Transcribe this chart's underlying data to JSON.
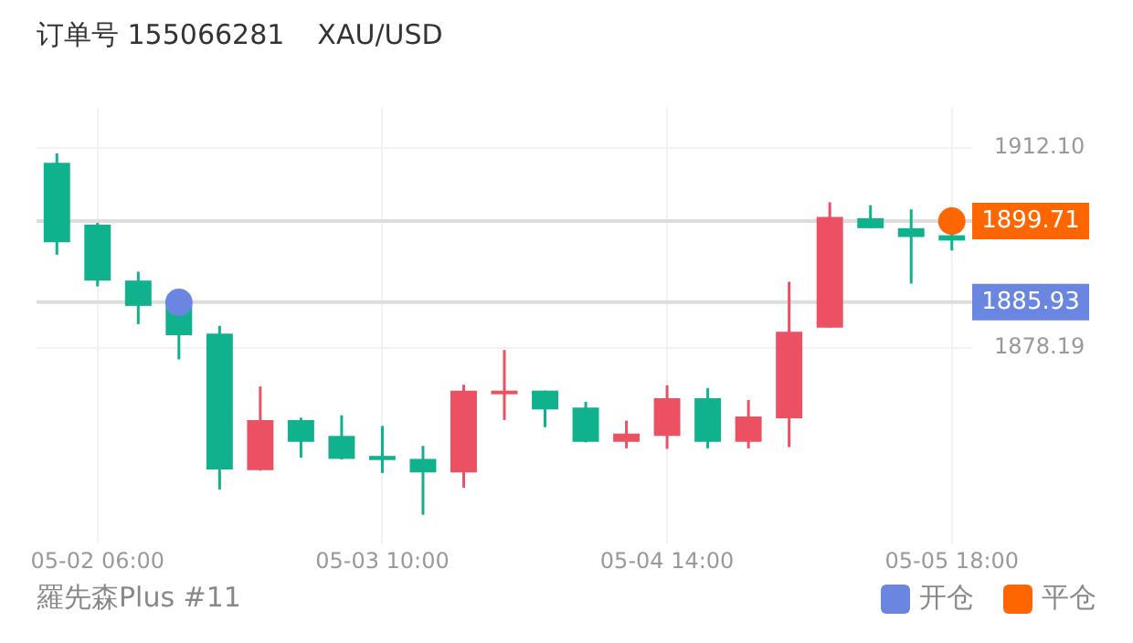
{
  "chart_data": {
    "type": "candlestick",
    "title": "订单号 155066281",
    "subtitle": "XAU/USD",
    "categories": [
      null,
      "05-02 06:00",
      null,
      null,
      null,
      null,
      null,
      null,
      "05-03 10:00",
      null,
      null,
      null,
      null,
      null,
      null,
      "05-04 14:00",
      null,
      null,
      null,
      null,
      null,
      null,
      "05-05 18:00"
    ],
    "ohlc": [
      [
        1909.6,
        1911.2,
        1894.0,
        1896.1
      ],
      [
        1899.1,
        1899.4,
        1888.6,
        1889.6
      ],
      [
        1889.6,
        1891.1,
        1882.2,
        1885.3
      ],
      [
        1885.3,
        1885.5,
        1876.2,
        1880.3
      ],
      [
        1880.6,
        1881.9,
        1854.1,
        1857.5
      ],
      [
        1857.4,
        1871.6,
        1857.3,
        1865.9
      ],
      [
        1865.9,
        1866.3,
        1859.5,
        1862.2
      ],
      [
        1863.2,
        1866.7,
        1859.2,
        1859.3
      ],
      [
        1859.8,
        1864.9,
        1856.9,
        1859.1
      ],
      [
        1859.3,
        1861.5,
        1849.8,
        1857.0
      ],
      [
        1857.0,
        1871.9,
        1854.4,
        1870.9
      ],
      [
        1870.8,
        1877.8,
        1865.9,
        1870.9
      ],
      [
        1870.9,
        1870.9,
        1864.7,
        1867.7
      ],
      [
        1868.0,
        1869.0,
        1862.1,
        1862.2
      ],
      [
        1862.2,
        1865.8,
        1861.1,
        1863.6
      ],
      [
        1863.2,
        1871.8,
        1861.0,
        1869.6
      ],
      [
        1869.6,
        1871.3,
        1861.1,
        1862.2
      ],
      [
        1862.2,
        1869.3,
        1861.1,
        1866.5
      ],
      [
        1866.2,
        1889.4,
        1861.3,
        1880.9
      ],
      [
        1881.6,
        1902.9,
        1881.6,
        1900.4
      ],
      [
        1900.2,
        1902.4,
        1898.5,
        1898.5
      ],
      [
        1898.5,
        1901.7,
        1889.1,
        1897.0
      ],
      [
        1897.3,
        1897.4,
        1894.7,
        1896.4
      ]
    ],
    "colors": [
      "#10b18d",
      "#10b18d",
      "#10b18d",
      "#10b18d",
      "#10b18d",
      "#eb5163",
      "#10b18d",
      "#10b18d",
      "#10b18d",
      "#10b18d",
      "#eb5163",
      "#eb5163",
      "#10b18d",
      "#10b18d",
      "#eb5163",
      "#eb5163",
      "#10b18d",
      "#eb5163",
      "#eb5163",
      "#eb5163",
      "#10b18d",
      "#10b18d",
      "#10b18d"
    ],
    "series": [
      {
        "name": "开仓",
        "type": "scatter",
        "color": "#6b86e0",
        "values": [
          null,
          null,
          null,
          1885.9,
          null,
          null,
          null,
          null,
          null,
          null,
          null,
          null,
          null,
          null,
          null,
          null,
          null,
          null,
          null,
          null,
          null,
          null,
          null
        ]
      },
      {
        "name": "平仓",
        "type": "scatter",
        "color": "#ff6600",
        "values": [
          null,
          null,
          null,
          null,
          null,
          null,
          null,
          null,
          null,
          null,
          null,
          null,
          null,
          null,
          null,
          null,
          null,
          null,
          null,
          null,
          null,
          null,
          1899.7
        ]
      }
    ],
    "ylim": [
      1844.9,
      1918.9
    ],
    "yticks": [
      {
        "value": 1912.1,
        "label": "1912.10"
      },
      {
        "value": 1878.19,
        "label": "1878.19"
      }
    ],
    "ref_lines": [
      {
        "axis": "y",
        "value": 1885.93,
        "label": "1885.93",
        "color": "#dddddd"
      },
      {
        "axis": "y",
        "value": 1899.71,
        "label": "1899.71",
        "color": "#dddddd"
      }
    ],
    "grid": true,
    "legend": "bottom right",
    "marker": "circle",
    "annotations": [
      "羅先森Plus #11"
    ]
  }
}
